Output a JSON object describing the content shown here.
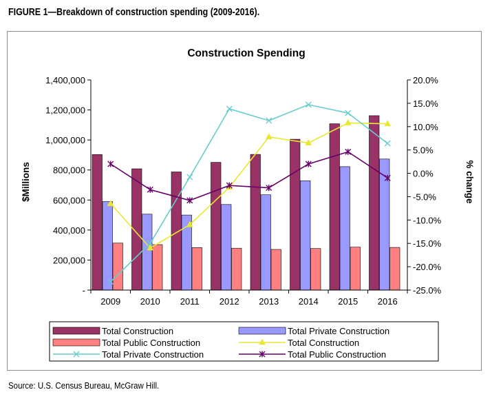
{
  "figure_caption": "FIGURE 1—Breakdown of construction spending (2009-2016).",
  "source_note": "Source: U.S. Census Bureau, McGraw Hill.",
  "chart_data": {
    "type": "bar",
    "title": "Construction Spending",
    "xlabel": "",
    "ylabel": "$Millions",
    "y2label": "% change",
    "categories": [
      "2009",
      "2010",
      "2011",
      "2012",
      "2013",
      "2014",
      "2015",
      "2016"
    ],
    "ylim": [
      0,
      1400000
    ],
    "y2lim": [
      -0.25,
      0.2
    ],
    "y_ticks": [
      "1,400,000",
      "1,200,000",
      "1,000,000",
      "800,000",
      "600,000",
      "400,000",
      "200,000",
      "-"
    ],
    "y2_ticks": [
      "20.0%",
      "15.0%",
      "10.0%",
      "5.0%",
      "0.0%",
      "-5.0%",
      "-10.0%",
      "-15.0%",
      "-20.0%",
      "-25.0%"
    ],
    "grid": false,
    "legend_position": "bottom",
    "bar_series": [
      {
        "name": "Total Construction",
        "color": "#993366",
        "values": [
          903000,
          808000,
          787000,
          851000,
          904000,
          1005000,
          1108000,
          1162000
        ]
      },
      {
        "name": "Total Private Construction",
        "color": "#9999ff",
        "values": [
          590000,
          506000,
          500000,
          570000,
          635000,
          728000,
          822000,
          873000
        ]
      },
      {
        "name": "Total Public Construction",
        "color": "#ff8080",
        "values": [
          313000,
          303000,
          283000,
          279000,
          271000,
          277000,
          286000,
          284000
        ]
      }
    ],
    "line_series": [
      {
        "name": "Total Construction",
        "color": "#e8e830",
        "marker": "triangle",
        "axis": "right",
        "values": [
          -0.065,
          -0.16,
          -0.11,
          -0.03,
          0.078,
          0.065,
          0.108,
          0.106
        ]
      },
      {
        "name": "Total Private Construction",
        "color": "#66cccc",
        "marker": "x",
        "axis": "right",
        "values": [
          -0.232,
          -0.15,
          -0.008,
          0.138,
          0.113,
          0.147,
          0.129,
          0.064
        ]
      },
      {
        "name": "Total Public Construction",
        "color": "#660066",
        "marker": "star",
        "axis": "right",
        "values": [
          0.02,
          -0.035,
          -0.058,
          -0.026,
          -0.031,
          0.02,
          0.046,
          -0.01
        ]
      }
    ]
  }
}
